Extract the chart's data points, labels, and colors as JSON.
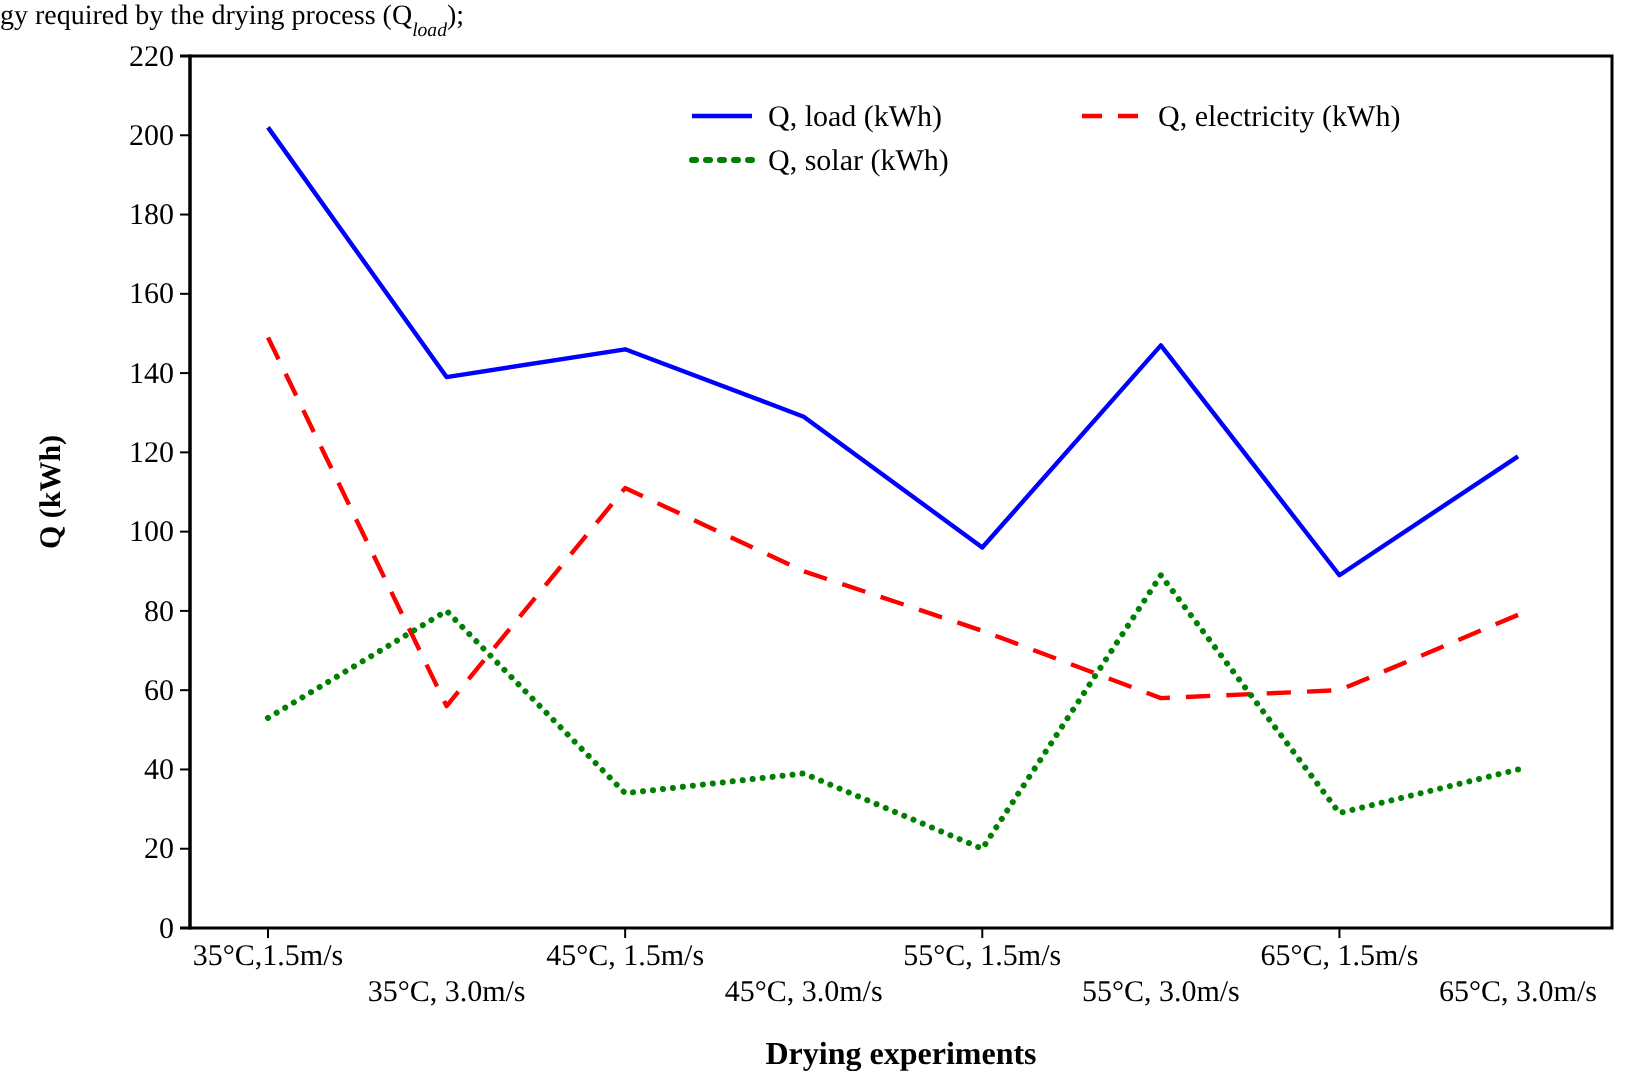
{
  "chart_data": {
    "type": "line",
    "xlabel": "Drying experiments",
    "ylabel": "Q (kWh)",
    "annotations": [
      "gy required by the drying process (Q$_{load}$);"
    ],
    "categories": [
      "35°C,1.5m/s",
      "35°C, 3.0m/s",
      "45°C, 1.5m/s",
      "45°C, 3.0m/s",
      "55°C, 1.5m/s",
      "55°C, 3.0m/s",
      "65°C, 1.5m/s",
      "65°C, 3.0m/s"
    ],
    "ylim": [
      0,
      220
    ],
    "yticks": [
      0,
      20,
      40,
      60,
      80,
      100,
      120,
      140,
      160,
      180,
      200,
      220
    ],
    "grid": false,
    "legend": "top right",
    "marker": "none",
    "series": [
      {
        "name": "Q, load (kWh)",
        "color": "#0000ff",
        "line_style": "solid",
        "values": [
          202,
          139,
          146,
          129,
          96,
          147,
          89,
          119
        ]
      },
      {
        "name": "Q, electricity (kWh)",
        "color": "#ff0000",
        "line_style": "dashed",
        "values": [
          149,
          56,
          111,
          90,
          75,
          58,
          60,
          79
        ]
      },
      {
        "name": "Q, solar (kWh)",
        "color": "#008000",
        "line_style": "dotted",
        "values": [
          53,
          80,
          34,
          39,
          20,
          89,
          29,
          40
        ]
      }
    ]
  }
}
